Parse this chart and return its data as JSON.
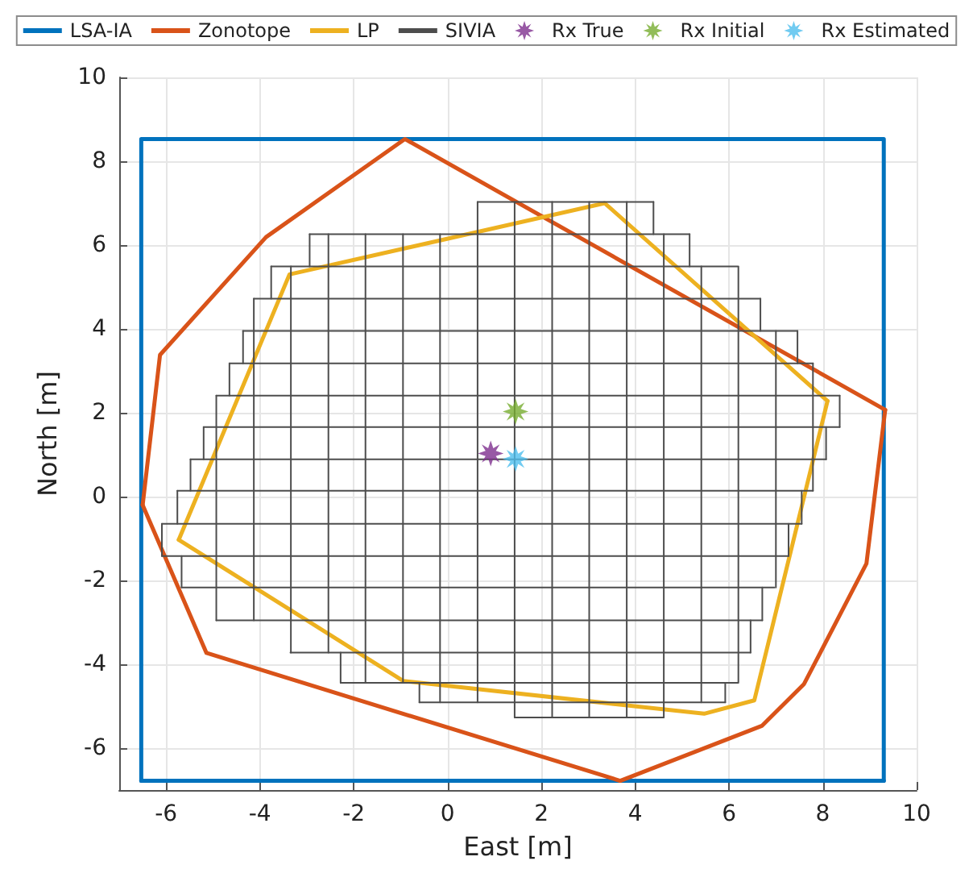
{
  "chart_data": {
    "type": "line",
    "xlabel": "East [m]",
    "ylabel": "North [m]",
    "xlim": [
      -7,
      10
    ],
    "ylim": [
      -7,
      10
    ],
    "xticks": [
      -6,
      -4,
      -2,
      0,
      2,
      4,
      6,
      8,
      10
    ],
    "yticks": [
      -6,
      -4,
      -2,
      0,
      2,
      4,
      6,
      8,
      10
    ],
    "grid": true,
    "legend": "top",
    "line_style": "solid",
    "series": [
      {
        "name": "LSA-IA",
        "color": "#0072bd",
        "x": [
          -6.53,
          -6.53,
          9.3,
          9.3,
          null,
          -6.53,
          9.3
        ],
        "values": [
          -6.78,
          8.53,
          8.53,
          -6.78,
          null,
          -6.78,
          -6.78
        ]
      },
      {
        "name": "Zonotope",
        "color": "#d95319",
        "x": [
          -6.5,
          -6.13,
          -3.87,
          -0.91,
          9.33,
          null,
          -6.5,
          -5.14,
          3.68,
          6.7,
          7.6,
          8.93,
          9.33
        ],
        "values": [
          -0.2,
          3.38,
          6.19,
          8.53,
          2.07,
          null,
          -0.2,
          -3.73,
          -6.78,
          -5.47,
          -4.47,
          -1.6,
          2.07
        ]
      },
      {
        "name": "LP",
        "color": "#edb120",
        "x": [
          -5.73,
          -3.37,
          3.35,
          8.1,
          null,
          -5.73,
          -0.94,
          5.47,
          6.54,
          8.1
        ],
        "values": [
          -1.03,
          5.3,
          7.0,
          2.28,
          null,
          -1.03,
          -4.4,
          -5.18,
          -4.86,
          2.28
        ]
      },
      {
        "name": "SIVIA",
        "color": "#4d4d4d",
        "x": [
          1.43,
          4.61,
          null,
          -0.6,
          5.92,
          null,
          -2.28,
          6.18,
          null,
          -3.35,
          6.46,
          null,
          -4.93,
          6.71,
          null,
          -5.67,
          6.97,
          null,
          -6.09,
          7.27,
          null,
          -6.09,
          7.55,
          null,
          -5.76,
          7.79,
          null,
          -5.48,
          8.07,
          null,
          -5.2,
          8.36,
          null,
          -4.93,
          8.36,
          null,
          -4.65,
          7.79,
          null,
          -4.36,
          7.46,
          null,
          -4.13,
          6.67,
          null,
          -3.76,
          6.18,
          null,
          -2.94,
          5.16,
          null,
          0.64,
          4.39,
          null,
          -0.6,
          -0.6,
          null,
          5.92,
          5.92,
          null,
          -2.28,
          -2.28,
          null,
          6.46,
          6.46,
          null,
          6.71,
          6.71,
          null,
          -5.67,
          -5.67,
          null,
          -6.09,
          -6.09,
          null,
          7.27,
          7.27,
          null,
          -5.76,
          -5.76,
          null,
          7.55,
          7.55,
          null,
          -5.48,
          -5.48,
          null,
          -5.2,
          -5.2,
          null,
          8.07,
          8.07,
          null,
          8.36,
          8.36,
          null,
          -4.65,
          -4.65,
          null,
          -4.36,
          -4.36,
          null,
          7.46,
          7.46,
          null,
          6.67,
          6.67,
          null,
          -3.76,
          -3.76,
          null,
          -2.94,
          -2.94,
          null,
          5.16,
          5.16,
          null,
          4.39,
          4.39,
          null,
          -4.93,
          -4.93,
          null,
          -4.13,
          -4.13,
          null,
          -3.34,
          -3.34,
          null,
          -2.54,
          -2.54,
          null,
          -1.75,
          -1.75,
          null,
          -0.95,
          -0.95,
          null,
          -0.16,
          -0.16,
          null,
          0.64,
          0.64,
          null,
          1.43,
          1.43,
          null,
          2.23,
          2.23,
          null,
          3.02,
          3.02,
          null,
          3.82,
          3.82,
          null,
          4.61,
          4.61,
          null,
          5.41,
          5.41,
          null,
          6.2,
          6.2,
          null,
          7.0,
          7.0,
          null,
          7.79,
          7.79
        ],
        "values": [
          -5.27,
          -5.27,
          null,
          -4.91,
          -4.91,
          null,
          -4.44,
          -4.44,
          null,
          -3.72,
          -3.72,
          null,
          -2.95,
          -2.95,
          null,
          -2.17,
          -2.17,
          null,
          -1.42,
          -1.42,
          null,
          -0.65,
          -0.65,
          null,
          0.14,
          0.14,
          null,
          0.89,
          0.89,
          null,
          1.66,
          1.66,
          null,
          2.41,
          2.41,
          null,
          3.18,
          3.18,
          null,
          3.95,
          3.95,
          null,
          4.72,
          4.72,
          null,
          5.49,
          5.49,
          null,
          6.26,
          6.26,
          null,
          7.03,
          7.03,
          null,
          -4.91,
          -4.44,
          null,
          -4.91,
          -4.44,
          null,
          -4.44,
          -3.72,
          null,
          -3.72,
          -2.95,
          null,
          -2.95,
          -2.17,
          null,
          -2.17,
          -1.42,
          null,
          -1.42,
          -0.65,
          null,
          -1.42,
          -0.65,
          null,
          -0.65,
          0.14,
          null,
          -0.65,
          0.14,
          null,
          0.14,
          0.89,
          null,
          0.89,
          1.66,
          null,
          0.89,
          1.66,
          null,
          1.66,
          2.41,
          null,
          2.41,
          3.18,
          null,
          3.18,
          3.95,
          null,
          3.18,
          3.95,
          null,
          3.95,
          4.72,
          null,
          4.72,
          5.49,
          null,
          5.49,
          6.26,
          null,
          5.49,
          6.26,
          null,
          6.26,
          7.03,
          null,
          -2.95,
          2.41,
          null,
          -2.95,
          4.72,
          null,
          -3.72,
          5.49,
          null,
          -3.72,
          6.26,
          null,
          -4.44,
          6.26,
          null,
          -4.44,
          6.26,
          null,
          -4.91,
          6.26,
          null,
          -4.91,
          7.03,
          null,
          -5.27,
          7.03,
          null,
          -5.27,
          7.03,
          null,
          -5.27,
          7.03,
          null,
          -5.27,
          7.03,
          null,
          -5.27,
          6.26,
          null,
          -4.91,
          5.49,
          null,
          -4.44,
          5.49,
          null,
          -2.17,
          3.95,
          null,
          0.14,
          3.18
        ]
      },
      {
        "name": "Rx True",
        "type": "scatter",
        "marker": "star",
        "color": "#7e2f8e",
        "x": [
          0.92
        ],
        "values": [
          1.03
        ]
      },
      {
        "name": "Rx Initial",
        "type": "scatter",
        "marker": "star",
        "color": "#77ac30",
        "x": [
          1.45
        ],
        "values": [
          2.03
        ]
      },
      {
        "name": "Rx Estimated",
        "type": "scatter",
        "marker": "star",
        "color": "#4dbeee",
        "x": [
          1.45
        ],
        "values": [
          0.9
        ]
      }
    ]
  }
}
